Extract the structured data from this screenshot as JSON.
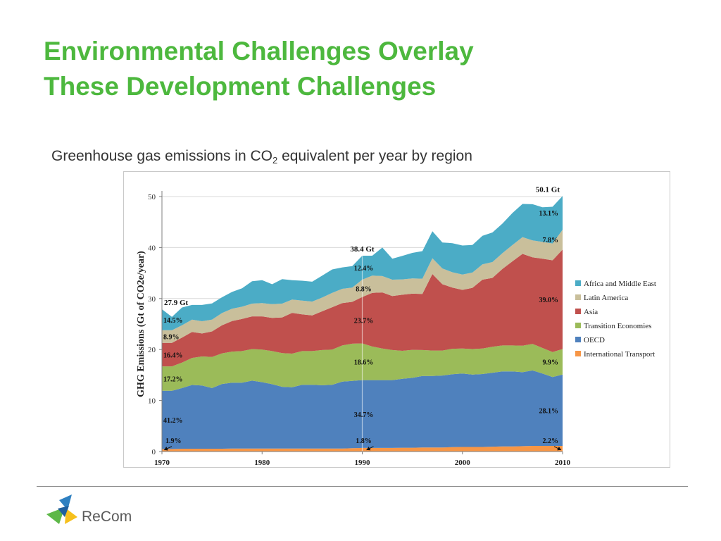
{
  "slide": {
    "title_line1": "Environmental Challenges Overlay",
    "title_line2": "These Development Challenges",
    "subtitle_pre": "Greenhouse gas emissions in CO",
    "subtitle_sub": "2",
    "subtitle_post": " equivalent per year by region",
    "logo_text": "ReCom"
  },
  "colors": {
    "title": "#4db83e",
    "africa_middle_east": "#4bacc6",
    "latin_america": "#c9bf9b",
    "asia": "#c0504d",
    "transition_economies": "#9bbb59",
    "oecd": "#4f81bd",
    "international_transport": "#f79646"
  },
  "chart_data": {
    "type": "area",
    "stacked": true,
    "ylabel": "GHG Emissions  (Gt of CO2e/year)",
    "xlim": [
      1970,
      2010
    ],
    "ylim": [
      0,
      50
    ],
    "xticks": [
      1970,
      1980,
      1990,
      2000,
      2010
    ],
    "yticks": [
      0,
      10,
      20,
      30,
      40,
      50
    ],
    "grid": "horizontal",
    "legend_position": "right",
    "x": [
      1970,
      1971,
      1972,
      1973,
      1974,
      1975,
      1976,
      1977,
      1978,
      1979,
      1980,
      1981,
      1982,
      1983,
      1984,
      1985,
      1986,
      1987,
      1988,
      1989,
      1990,
      1991,
      1992,
      1993,
      1994,
      1995,
      1996,
      1997,
      1998,
      1999,
      2000,
      2001,
      2002,
      2003,
      2004,
      2005,
      2006,
      2007,
      2008,
      2009,
      2010
    ],
    "series": [
      {
        "name": "International Transport",
        "color": "#f79646",
        "values": [
          0.5,
          0.5,
          0.55,
          0.55,
          0.55,
          0.55,
          0.55,
          0.6,
          0.6,
          0.6,
          0.6,
          0.6,
          0.6,
          0.6,
          0.6,
          0.6,
          0.6,
          0.6,
          0.6,
          0.65,
          0.7,
          0.7,
          0.7,
          0.7,
          0.75,
          0.75,
          0.8,
          0.8,
          0.8,
          0.85,
          0.9,
          0.9,
          0.9,
          0.95,
          1.0,
          1.0,
          1.05,
          1.1,
          1.1,
          1.1,
          1.1
        ]
      },
      {
        "name": "OECD",
        "color": "#4f81bd",
        "values": [
          11.4,
          11.4,
          11.9,
          12.5,
          12.4,
          11.9,
          12.7,
          12.9,
          12.9,
          13.3,
          13.0,
          12.6,
          12.1,
          12.0,
          12.5,
          12.5,
          12.4,
          12.5,
          13.1,
          13.2,
          13.3,
          13.3,
          13.3,
          13.3,
          13.5,
          13.7,
          14.0,
          14.0,
          14.1,
          14.3,
          14.4,
          14.2,
          14.3,
          14.5,
          14.7,
          14.7,
          14.5,
          14.8,
          14.2,
          13.5,
          14.0
        ]
      },
      {
        "name": "Transition Economies",
        "color": "#9bbb59",
        "values": [
          4.8,
          4.8,
          5.0,
          5.3,
          5.7,
          6.1,
          6.0,
          6.1,
          6.2,
          6.2,
          6.4,
          6.5,
          6.6,
          6.6,
          6.6,
          6.6,
          6.9,
          6.9,
          7.1,
          7.3,
          7.2,
          6.6,
          6.2,
          5.9,
          5.5,
          5.5,
          5.1,
          5.0,
          4.9,
          5.0,
          4.9,
          5.0,
          5.0,
          5.1,
          5.1,
          5.1,
          5.2,
          5.2,
          5.0,
          4.9,
          5.0
        ]
      },
      {
        "name": "Asia",
        "color": "#c0504d",
        "values": [
          4.6,
          4.6,
          4.9,
          5.1,
          4.5,
          5.0,
          5.5,
          6.0,
          6.3,
          6.4,
          6.5,
          6.5,
          7.0,
          8.0,
          7.2,
          7.0,
          7.6,
          8.3,
          8.3,
          8.2,
          9.1,
          10.5,
          11.0,
          10.6,
          11.0,
          11.0,
          11.0,
          15.0,
          13.0,
          12.0,
          11.5,
          12.0,
          13.5,
          13.5,
          15.0,
          16.5,
          18.0,
          17.0,
          17.5,
          18.0,
          19.5
        ]
      },
      {
        "name": "Latin America",
        "color": "#c9bf9b",
        "values": [
          2.5,
          2.5,
          2.4,
          2.4,
          2.4,
          2.3,
          2.4,
          2.4,
          2.4,
          2.5,
          2.6,
          2.7,
          2.7,
          2.6,
          2.7,
          2.7,
          2.7,
          2.8,
          2.8,
          2.8,
          3.4,
          3.4,
          3.2,
          3.2,
          3.0,
          3.0,
          3.0,
          3.1,
          3.1,
          3.0,
          3.0,
          3.0,
          3.0,
          3.1,
          3.1,
          3.2,
          3.3,
          3.3,
          3.3,
          3.3,
          3.9
        ]
      },
      {
        "name": "Africa and Middle East",
        "color": "#4bacc6",
        "values": [
          4.1,
          2.6,
          3.5,
          2.9,
          3.2,
          3.2,
          3.1,
          3.3,
          3.6,
          4.4,
          4.5,
          3.9,
          4.8,
          3.8,
          3.9,
          3.9,
          4.3,
          4.6,
          4.2,
          4.2,
          4.7,
          3.9,
          5.6,
          4.1,
          4.6,
          5.0,
          5.4,
          5.3,
          5.1,
          5.7,
          5.7,
          5.4,
          5.6,
          5.8,
          5.8,
          6.3,
          6.5,
          7.1,
          6.8,
          7.2,
          6.6
        ]
      }
    ],
    "totals": [
      {
        "x": 1970,
        "label": "27.9 Gt"
      },
      {
        "x": 1990,
        "label": "38.4 Gt"
      },
      {
        "x": 2010,
        "label": "50.1 Gt"
      }
    ],
    "shares": {
      "1970": {
        "Africa and Middle East": "14.5%",
        "Latin America": "8.9%",
        "Asia": "16.4%",
        "Transition Economies": "17.2%",
        "OECD": "41.2%",
        "International Transport": "1.9%"
      },
      "1990": {
        "Africa and Middle East": "12.4%",
        "Latin America": "8.8%",
        "Asia": "23.7%",
        "Transition Economies": "18.6%",
        "OECD": "34.7%",
        "International Transport": "1.8%"
      },
      "2010": {
        "Africa and Middle East": "13.1%",
        "Latin America": "7.8%",
        "Asia": "39.0%",
        "Transition Economies": "9.9%",
        "OECD": "28.1%",
        "International Transport": "2.2%"
      }
    }
  }
}
